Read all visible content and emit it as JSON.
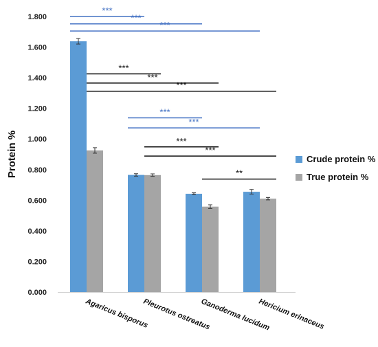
{
  "chart_data": {
    "type": "bar",
    "title": "",
    "xlabel": "",
    "ylabel": "Protein %",
    "ylim": [
      0,
      1.8
    ],
    "yticks": [
      "0.000",
      "0.200",
      "0.400",
      "0.600",
      "0.800",
      "1.000",
      "1.200",
      "1.400",
      "1.600",
      "1.800"
    ],
    "grid": false,
    "legend_position": "right",
    "categories": [
      "Agaricus bisporus",
      "Pleurotus ostreatus",
      "Ganoderma lucidum",
      "Hericium erinaceus"
    ],
    "series": [
      {
        "name": "Crude protein %",
        "color": "#5b9bd5",
        "values": [
          1.638,
          0.765,
          0.642,
          0.655
        ],
        "errors": [
          0.018,
          0.008,
          0.006,
          0.015
        ]
      },
      {
        "name": "True protein %",
        "color": "#a5a5a5",
        "values": [
          0.925,
          0.764,
          0.558,
          0.61
        ],
        "errors": [
          0.018,
          0.008,
          0.012,
          0.008
        ]
      }
    ],
    "significance": [
      {
        "label": "***",
        "color": "#4472c4",
        "from": 0,
        "to": 1,
        "series": 0,
        "y": 1.8
      },
      {
        "label": "***",
        "color": "#4472c4",
        "from": 0,
        "to": 2,
        "series": 0,
        "y": 1.752
      },
      {
        "label": "***",
        "color": "#4472c4",
        "from": 0,
        "to": 3,
        "series": 0,
        "y": 1.705
      },
      {
        "label": "***",
        "color": "#111111",
        "from": 0,
        "to": 1,
        "series": 1,
        "y": 1.425
      },
      {
        "label": "***",
        "color": "#111111",
        "from": 0,
        "to": 2,
        "series": 1,
        "y": 1.365
      },
      {
        "label": "***",
        "color": "#111111",
        "from": 0,
        "to": 3,
        "series": 1,
        "y": 1.312
      },
      {
        "label": "***",
        "color": "#4472c4",
        "from": 1,
        "to": 2,
        "series": 0,
        "y": 1.138
      },
      {
        "label": "***",
        "color": "#4472c4",
        "from": 1,
        "to": 3,
        "series": 0,
        "y": 1.072
      },
      {
        "label": "***",
        "color": "#111111",
        "from": 1,
        "to": 2,
        "series": 1,
        "y": 0.948
      },
      {
        "label": "***",
        "color": "#111111",
        "from": 1,
        "to": 3,
        "series": 1,
        "y": 0.888
      },
      {
        "label": "**",
        "color": "#111111",
        "from": 2,
        "to": 3,
        "series": 1,
        "y": 0.738
      }
    ]
  }
}
